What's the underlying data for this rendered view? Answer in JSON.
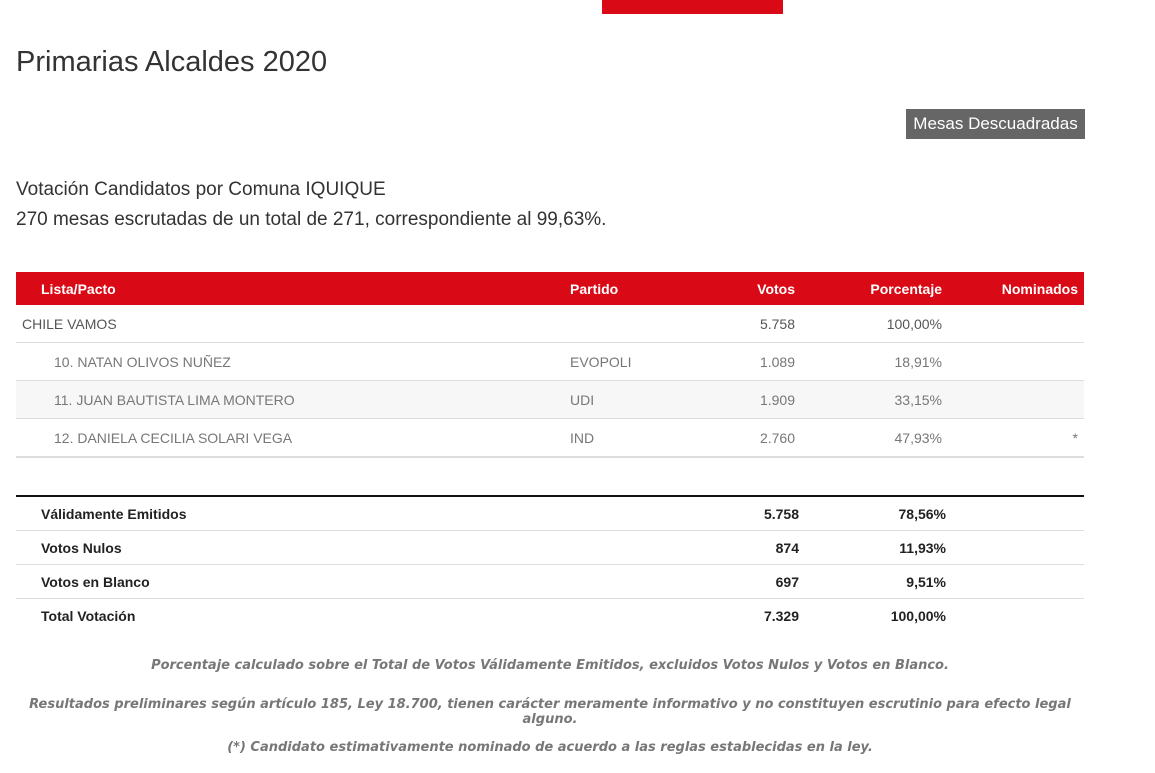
{
  "title": "Primarias Alcaldes 2020",
  "button": "Mesas Descuadradas",
  "subtitle": "Votación Candidatos por Comuna IQUIQUE",
  "mesas": "270 mesas escrutadas de un total de 271, correspondiente al 99,63%.",
  "headers": [
    "Lista/Pacto",
    "Partido",
    "Votos",
    "Porcentaje",
    "Nominados"
  ],
  "rows": [
    [
      "CHILE VAMOS",
      "",
      "5.758",
      "100,00%",
      ""
    ],
    [
      "10. NATAN OLIVOS NUÑEZ",
      "EVOPOLI",
      "1.089",
      "18,91%",
      ""
    ],
    [
      "11. JUAN BAUTISTA LIMA MONTERO",
      "UDI",
      "1.909",
      "33,15%",
      ""
    ],
    [
      "12. DANIELA CECILIA SOLARI VEGA",
      "IND",
      "2.760",
      "47,93%",
      "*"
    ]
  ],
  "totals": [
    [
      "Válidamente Emitidos",
      "5.758",
      "78,56%"
    ],
    [
      "Votos Nulos",
      "874",
      "11,93%"
    ],
    [
      "Votos en Blanco",
      "697",
      "9,51%"
    ],
    [
      "Total Votación",
      "7.329",
      "100,00%"
    ]
  ],
  "notes": [
    "Porcentaje calculado sobre el Total de Votos Válidamente Emitidos, excluidos Votos Nulos y Votos en Blanco.",
    "Resultados preliminares según artículo 185, Ley 18.700, tienen carácter meramente informativo y no constituyen escrutinio para efecto legal alguno.",
    "(*) Candidato estimativamente nominado de acuerdo a las reglas establecidas en la ley."
  ]
}
